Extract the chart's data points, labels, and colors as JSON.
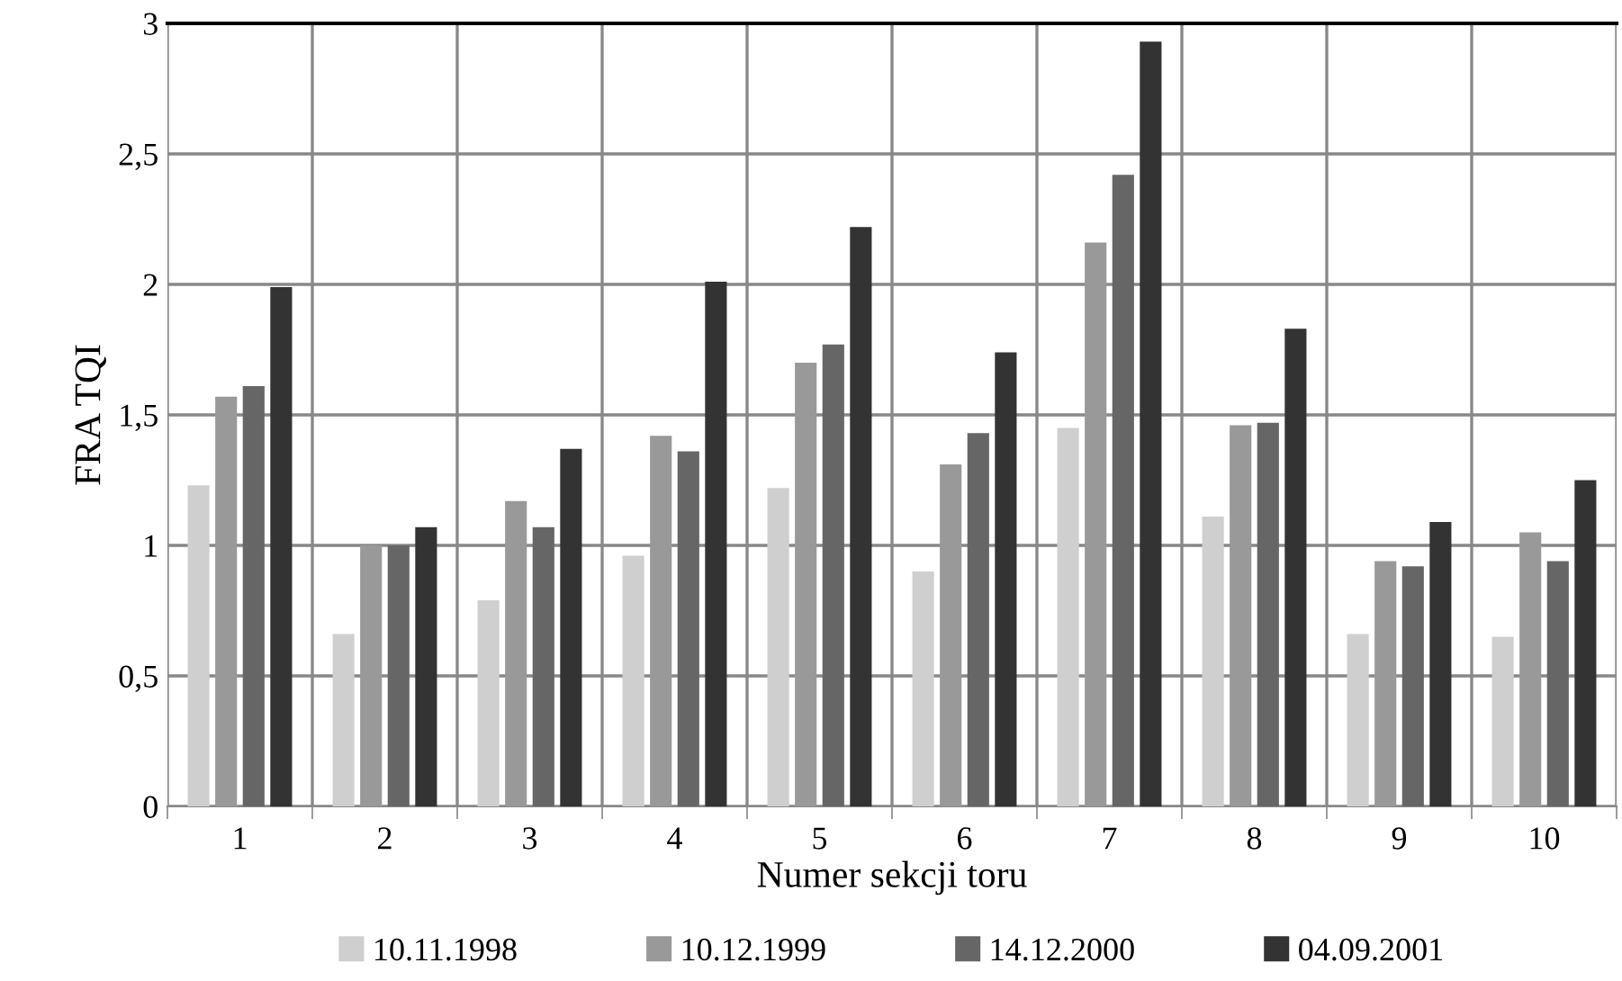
{
  "chart_data": {
    "type": "bar",
    "xlabel": "Numer sekcji toru",
    "ylabel": "FRA TQI",
    "categories": [
      "1",
      "2",
      "3",
      "4",
      "5",
      "6",
      "7",
      "8",
      "9",
      "10"
    ],
    "series": [
      {
        "name": "10.11.1998",
        "color": "#cfcfcf",
        "values": [
          1.23,
          0.66,
          0.79,
          0.96,
          1.22,
          0.9,
          1.45,
          1.11,
          0.66,
          0.65
        ]
      },
      {
        "name": "10.12.1999",
        "color": "#999999",
        "values": [
          1.57,
          1.0,
          1.17,
          1.42,
          1.7,
          1.31,
          2.16,
          1.46,
          0.94,
          1.05
        ]
      },
      {
        "name": "14.12.2000",
        "color": "#666666",
        "values": [
          1.61,
          1.0,
          1.07,
          1.36,
          1.77,
          1.43,
          2.42,
          1.47,
          0.92,
          0.94
        ]
      },
      {
        "name": "04.09.2001",
        "color": "#333333",
        "values": [
          1.99,
          1.07,
          1.37,
          2.01,
          2.22,
          1.74,
          2.93,
          1.83,
          1.09,
          1.25
        ]
      }
    ],
    "ylim": [
      0,
      3
    ],
    "yticks": [
      0,
      {
        "value": 0.5,
        "label": "0,5"
      },
      1,
      {
        "value": 1.5,
        "label": "1,5"
      },
      2,
      {
        "value": 2.5,
        "label": "2,5"
      },
      3
    ],
    "grid": true,
    "legend": "bottom"
  }
}
